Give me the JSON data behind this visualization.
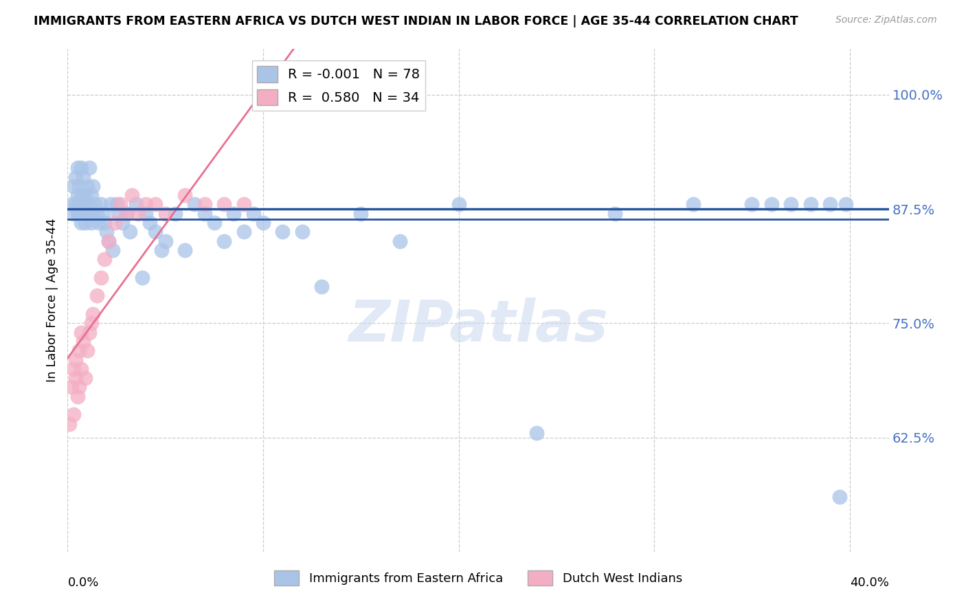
{
  "title": "IMMIGRANTS FROM EASTERN AFRICA VS DUTCH WEST INDIAN IN LABOR FORCE | AGE 35-44 CORRELATION CHART",
  "source": "Source: ZipAtlas.com",
  "ylabel": "In Labor Force | Age 35-44",
  "xlim": [
    0.0,
    0.42
  ],
  "ylim": [
    0.5,
    1.05
  ],
  "hline_y": 0.875,
  "hline_color": "#2855a0",
  "blue_R": -0.001,
  "blue_N": 78,
  "pink_R": 0.58,
  "pink_N": 34,
  "blue_color": "#aac4e8",
  "pink_color": "#f4aec4",
  "blue_line_color": "#2855a0",
  "pink_line_color": "#e87090",
  "legend_label_blue": "Immigrants from Eastern Africa",
  "legend_label_pink": "Dutch West Indians",
  "watermark": "ZIPatlas",
  "ytick_vals": [
    0.625,
    0.75,
    0.875,
    1.0
  ],
  "ytick_labels": [
    "62.5%",
    "75.0%",
    "87.5%",
    "100.0%"
  ],
  "xtick_vals": [
    0.0,
    0.1,
    0.2,
    0.3,
    0.4
  ],
  "blue_x": [
    0.002,
    0.003,
    0.003,
    0.004,
    0.004,
    0.005,
    0.005,
    0.005,
    0.006,
    0.006,
    0.006,
    0.007,
    0.007,
    0.007,
    0.007,
    0.008,
    0.008,
    0.008,
    0.008,
    0.009,
    0.009,
    0.009,
    0.01,
    0.01,
    0.011,
    0.011,
    0.012,
    0.012,
    0.013,
    0.013,
    0.014,
    0.015,
    0.016,
    0.017,
    0.018,
    0.019,
    0.02,
    0.021,
    0.022,
    0.023,
    0.025,
    0.026,
    0.028,
    0.03,
    0.032,
    0.035,
    0.038,
    0.04,
    0.042,
    0.045,
    0.048,
    0.05,
    0.055,
    0.06,
    0.065,
    0.07,
    0.075,
    0.08,
    0.085,
    0.09,
    0.095,
    0.1,
    0.11,
    0.12,
    0.13,
    0.15,
    0.17,
    0.2,
    0.24,
    0.28,
    0.32,
    0.35,
    0.36,
    0.37,
    0.38,
    0.39,
    0.395,
    0.398
  ],
  "blue_y": [
    0.88,
    0.87,
    0.9,
    0.88,
    0.91,
    0.87,
    0.89,
    0.92,
    0.87,
    0.88,
    0.9,
    0.86,
    0.88,
    0.89,
    0.92,
    0.87,
    0.88,
    0.89,
    0.91,
    0.86,
    0.88,
    0.89,
    0.87,
    0.9,
    0.88,
    0.92,
    0.86,
    0.89,
    0.87,
    0.9,
    0.88,
    0.87,
    0.86,
    0.88,
    0.87,
    0.86,
    0.85,
    0.84,
    0.88,
    0.83,
    0.88,
    0.87,
    0.86,
    0.87,
    0.85,
    0.88,
    0.8,
    0.87,
    0.86,
    0.85,
    0.83,
    0.84,
    0.87,
    0.83,
    0.88,
    0.87,
    0.86,
    0.84,
    0.87,
    0.85,
    0.87,
    0.86,
    0.85,
    0.85,
    0.79,
    0.87,
    0.84,
    0.88,
    0.63,
    0.87,
    0.88,
    0.88,
    0.88,
    0.88,
    0.88,
    0.88,
    0.56,
    0.88
  ],
  "pink_x": [
    0.001,
    0.002,
    0.003,
    0.003,
    0.004,
    0.004,
    0.005,
    0.006,
    0.006,
    0.007,
    0.007,
    0.008,
    0.009,
    0.01,
    0.011,
    0.012,
    0.013,
    0.015,
    0.017,
    0.019,
    0.021,
    0.024,
    0.027,
    0.03,
    0.033,
    0.036,
    0.04,
    0.045,
    0.05,
    0.06,
    0.07,
    0.08,
    0.09,
    0.1
  ],
  "pink_y": [
    0.64,
    0.68,
    0.7,
    0.65,
    0.69,
    0.71,
    0.67,
    0.72,
    0.68,
    0.74,
    0.7,
    0.73,
    0.69,
    0.72,
    0.74,
    0.75,
    0.76,
    0.78,
    0.8,
    0.82,
    0.84,
    0.86,
    0.88,
    0.87,
    0.89,
    0.87,
    0.88,
    0.88,
    0.87,
    0.89,
    0.88,
    0.88,
    0.88,
    1.0
  ]
}
